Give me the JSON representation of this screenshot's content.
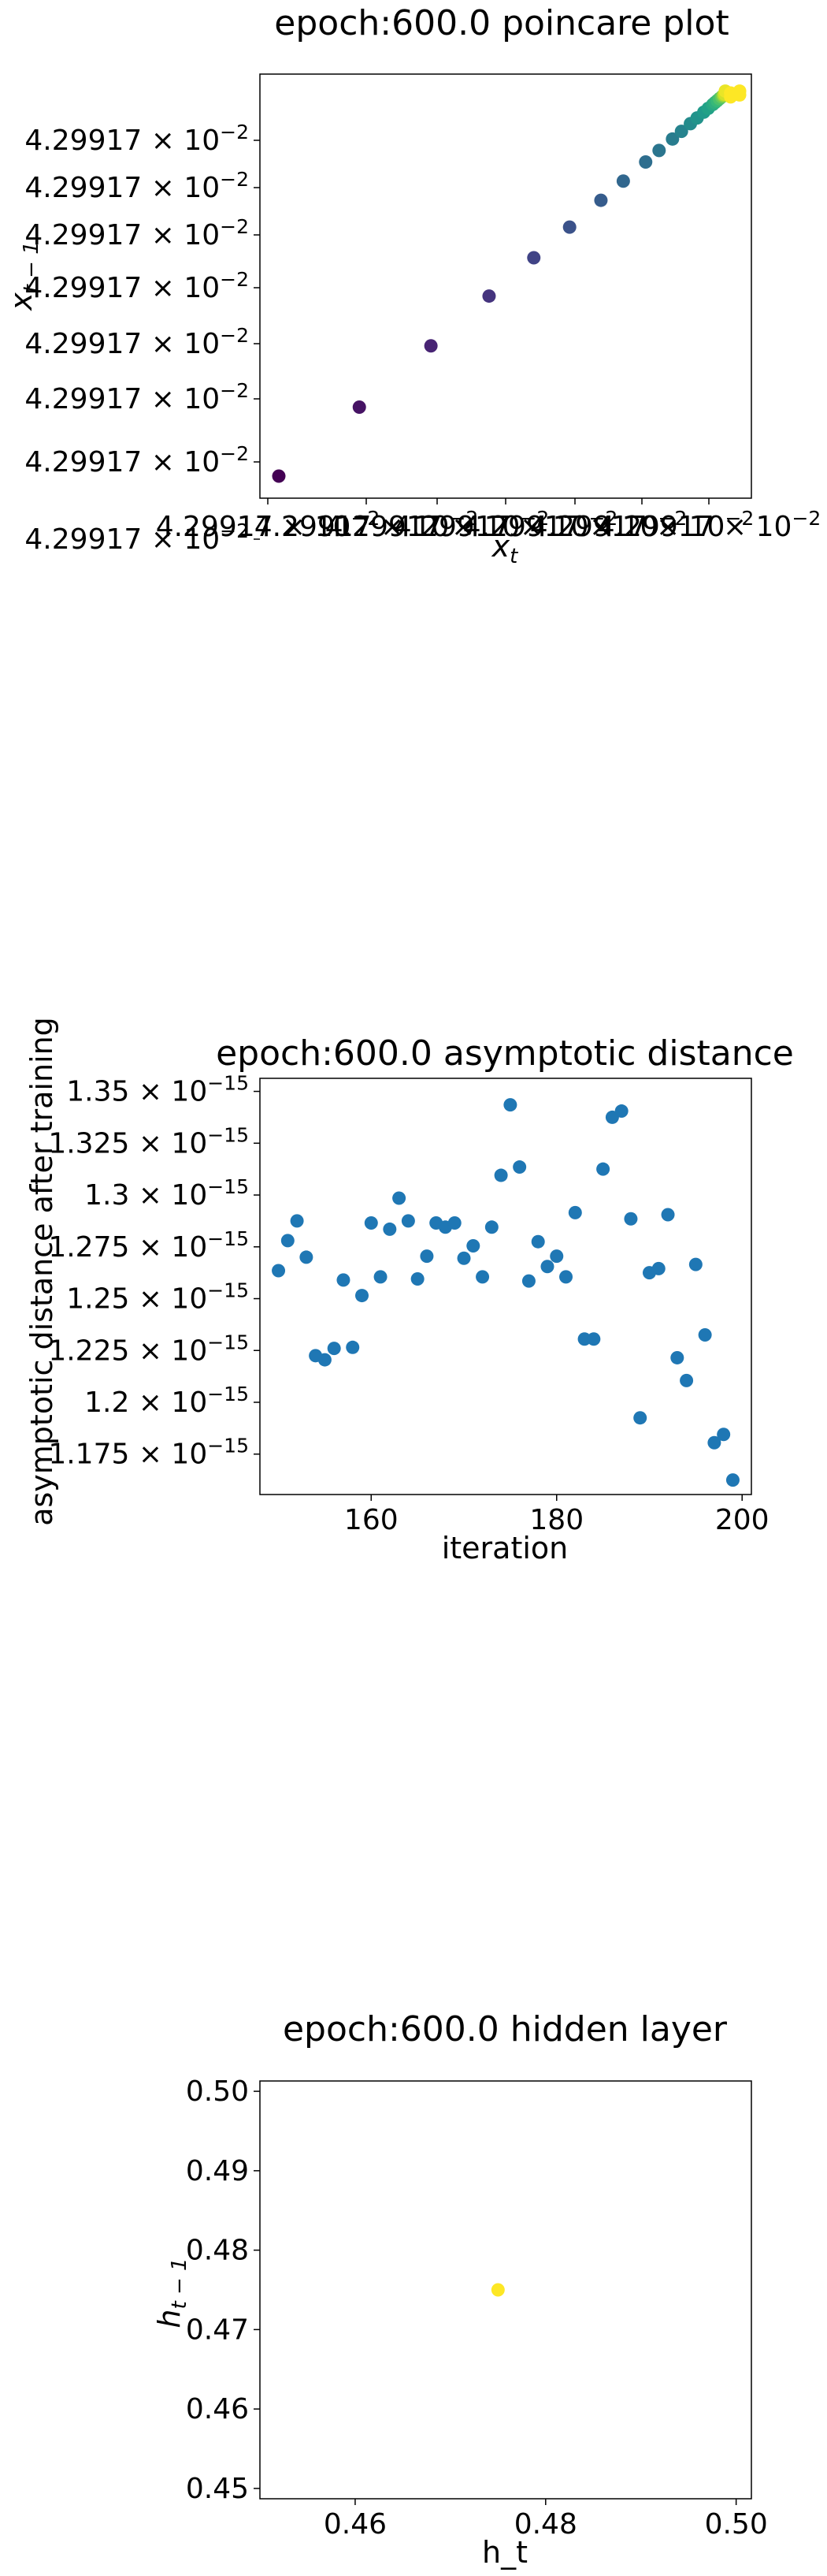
{
  "chart_data": [
    {
      "type": "scatter",
      "title": "epoch:600.0 poincare plot",
      "xlabel": "x",
      "xlabel_sub": "t",
      "ylabel": "x",
      "ylabel_sub": "t − 1",
      "colormap": "viridis",
      "y_tick_labels": [
        "4.29917 × 10",
        "4.29917 × 10",
        "4.29917 × 10",
        "4.29917 × 10",
        "4.29917 × 10",
        "4.29917 × 10",
        "4.29917 × 10",
        "4.29917 × 10"
      ],
      "y_tick_exponent": "−2",
      "x_tick_labels": [
        "4.29917 × 10",
        "4.29917 × 10",
        "4.29917 × 10",
        "4.29917 × 10",
        "4.29917 × 10",
        "4.29917 × 10",
        "4.29917 × 10"
      ],
      "x_tick_exponent": "−2",
      "points": [
        {
          "x": 0.0,
          "y": 0.0,
          "c": 0.0
        },
        {
          "x": 0.18,
          "y": 0.18,
          "c": 0.05
        },
        {
          "x": 0.34,
          "y": 0.34,
          "c": 0.1
        },
        {
          "x": 0.47,
          "y": 0.47,
          "c": 0.15
        },
        {
          "x": 0.57,
          "y": 0.57,
          "c": 0.2
        },
        {
          "x": 0.65,
          "y": 0.65,
          "c": 0.25
        },
        {
          "x": 0.72,
          "y": 0.72,
          "c": 0.29
        },
        {
          "x": 0.77,
          "y": 0.77,
          "c": 0.33
        },
        {
          "x": 0.82,
          "y": 0.82,
          "c": 0.36
        },
        {
          "x": 0.85,
          "y": 0.85,
          "c": 0.39
        },
        {
          "x": 0.88,
          "y": 0.88,
          "c": 0.42
        },
        {
          "x": 0.9,
          "y": 0.9,
          "c": 0.45
        },
        {
          "x": 0.92,
          "y": 0.92,
          "c": 0.48
        },
        {
          "x": 0.935,
          "y": 0.935,
          "c": 0.51
        },
        {
          "x": 0.95,
          "y": 0.95,
          "c": 0.54
        },
        {
          "x": 0.96,
          "y": 0.96,
          "c": 0.57
        },
        {
          "x": 0.97,
          "y": 0.97,
          "c": 0.6
        },
        {
          "x": 0.975,
          "y": 0.975,
          "c": 0.63
        },
        {
          "x": 0.98,
          "y": 0.98,
          "c": 0.67
        },
        {
          "x": 0.985,
          "y": 0.985,
          "c": 0.71
        },
        {
          "x": 0.99,
          "y": 0.99,
          "c": 0.76
        },
        {
          "x": 0.993,
          "y": 0.993,
          "c": 0.82
        },
        {
          "x": 0.995,
          "y": 0.995,
          "c": 0.88
        },
        {
          "x": 0.997,
          "y": 0.997,
          "c": 0.93
        },
        {
          "x": 0.998,
          "y": 1.005,
          "c": 0.97
        },
        {
          "x": 1.01,
          "y": 1.0,
          "c": 1.0
        },
        {
          "x": 1.03,
          "y": 1.005,
          "c": 1.0
        },
        {
          "x": 1.03,
          "y": 0.995,
          "c": 1.0
        },
        {
          "x": 1.01,
          "y": 0.99,
          "c": 1.0
        }
      ]
    },
    {
      "type": "scatter",
      "title": "epoch:600.0 asymptotic distance",
      "xlabel": "iteration",
      "ylabel": "asymptotic distance after training",
      "xlim": [
        148,
        201
      ],
      "ylim": [
        1.1555,
        1.3563
      ],
      "y_scale_exponent": "−15",
      "color": "#1f77b4",
      "x_ticks": [
        160,
        180,
        200
      ],
      "y_ticks": [
        {
          "v": 1.175,
          "label": "1.175 × 10"
        },
        {
          "v": 1.2,
          "label": "1.2 × 10"
        },
        {
          "v": 1.225,
          "label": "1.225 × 10"
        },
        {
          "v": 1.25,
          "label": "1.25 × 10"
        },
        {
          "v": 1.275,
          "label": "1.275 × 10"
        },
        {
          "v": 1.3,
          "label": "1.3 × 10"
        },
        {
          "v": 1.325,
          "label": "1.325 × 10"
        },
        {
          "v": 1.35,
          "label": "1.35 × 10"
        }
      ],
      "points": [
        [
          150,
          1.2635
        ],
        [
          151,
          1.278
        ],
        [
          152,
          1.2875
        ],
        [
          153,
          1.27
        ],
        [
          154,
          1.2225
        ],
        [
          155,
          1.2205
        ],
        [
          156,
          1.226
        ],
        [
          157,
          1.259
        ],
        [
          158,
          1.2265
        ],
        [
          159,
          1.2515
        ],
        [
          160,
          1.2865
        ],
        [
          161,
          1.2605
        ],
        [
          162,
          1.2835
        ],
        [
          163,
          1.2985
        ],
        [
          164,
          1.2875
        ],
        [
          165,
          1.2595
        ],
        [
          166,
          1.2705
        ],
        [
          167,
          1.2865
        ],
        [
          168,
          1.2845
        ],
        [
          169,
          1.2865
        ],
        [
          170,
          1.2695
        ],
        [
          171,
          1.2755
        ],
        [
          172,
          1.2605
        ],
        [
          173,
          1.2845
        ],
        [
          174,
          1.3095
        ],
        [
          175,
          1.3435
        ],
        [
          176,
          1.3135
        ],
        [
          177,
          1.2585
        ],
        [
          178,
          1.2775
        ],
        [
          179,
          1.2655
        ],
        [
          180,
          1.2705
        ],
        [
          181,
          1.2605
        ],
        [
          182,
          1.2915
        ],
        [
          183,
          1.2305
        ],
        [
          184,
          1.2305
        ],
        [
          185,
          1.3125
        ],
        [
          186,
          1.3375
        ],
        [
          187,
          1.3405
        ],
        [
          188,
          1.2885
        ],
        [
          189,
          1.1925
        ],
        [
          190,
          1.2625
        ],
        [
          191,
          1.2645
        ],
        [
          192,
          1.2905
        ],
        [
          193,
          1.2215
        ],
        [
          194,
          1.2105
        ],
        [
          195,
          1.2665
        ],
        [
          196,
          1.2325
        ],
        [
          197,
          1.1805
        ],
        [
          198,
          1.1845
        ],
        [
          199,
          1.1625
        ]
      ]
    },
    {
      "type": "scatter",
      "title": "epoch:600.0 hidden layer",
      "xlabel": "h_t",
      "ylabel": "h",
      "ylabel_sub": "t − 1",
      "xlim": [
        0.45,
        0.5016
      ],
      "ylim": [
        0.4487,
        0.5013
      ],
      "x_ticks": [
        0.46,
        0.48,
        0.5
      ],
      "y_ticks": [
        0.45,
        0.46,
        0.47,
        0.48,
        0.49,
        0.5
      ],
      "color": "#fde725",
      "points": [
        [
          0.475,
          0.475
        ]
      ]
    }
  ]
}
